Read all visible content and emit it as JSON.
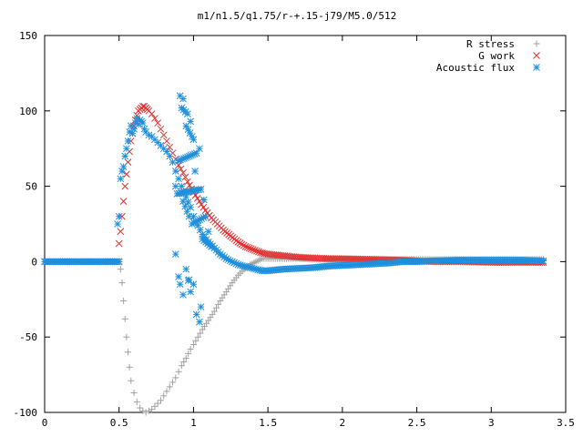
{
  "chart_data": {
    "type": "scatter",
    "title": "m1/n1.5/q1.75/r-+.15-j79/M5.0/512",
    "xlabel": "",
    "ylabel": "",
    "xlim": [
      0,
      3.5
    ],
    "ylim": [
      -100,
      150
    ],
    "xticks": [
      "0",
      "0.5",
      "1",
      "1.5",
      "2",
      "2.5",
      "3",
      "3.5"
    ],
    "yticks": [
      "-100",
      "-50",
      "0",
      "50",
      "100",
      "150"
    ],
    "grid": false,
    "legend_position": "top-right",
    "series": [
      {
        "name": "R stress",
        "marker": "plus",
        "color": "#a0a0a0",
        "points": [
          [
            0.0,
            0
          ],
          [
            0.1,
            0
          ],
          [
            0.2,
            0
          ],
          [
            0.3,
            0
          ],
          [
            0.4,
            0
          ],
          [
            0.5,
            0
          ],
          [
            0.51,
            -5
          ],
          [
            0.52,
            -14
          ],
          [
            0.53,
            -26
          ],
          [
            0.54,
            -38
          ],
          [
            0.55,
            -50
          ],
          [
            0.56,
            -60
          ],
          [
            0.57,
            -70
          ],
          [
            0.58,
            -79
          ],
          [
            0.6,
            -87
          ],
          [
            0.62,
            -93
          ],
          [
            0.64,
            -97
          ],
          [
            0.66,
            -99
          ],
          [
            0.68,
            -100
          ],
          [
            0.7,
            -99
          ],
          [
            0.72,
            -98
          ],
          [
            0.74,
            -96
          ],
          [
            0.76,
            -94
          ],
          [
            0.78,
            -92
          ],
          [
            0.8,
            -89
          ],
          [
            0.82,
            -86
          ],
          [
            0.84,
            -83
          ],
          [
            0.86,
            -80
          ],
          [
            0.88,
            -77
          ],
          [
            0.9,
            -73
          ],
          [
            0.92,
            -69
          ],
          [
            0.95,
            -64
          ],
          [
            0.98,
            -58
          ],
          [
            1.0,
            -55
          ],
          [
            1.03,
            -50
          ],
          [
            1.06,
            -45
          ],
          [
            1.1,
            -39
          ],
          [
            1.14,
            -33
          ],
          [
            1.18,
            -26
          ],
          [
            1.22,
            -20
          ],
          [
            1.26,
            -14
          ],
          [
            1.3,
            -9
          ],
          [
            1.34,
            -5
          ],
          [
            1.38,
            -2
          ],
          [
            1.42,
            0
          ],
          [
            1.46,
            2
          ],
          [
            1.5,
            2
          ],
          [
            1.6,
            2
          ],
          [
            1.7,
            2
          ],
          [
            1.8,
            1.5
          ],
          [
            2.0,
            1.5
          ],
          [
            2.2,
            1.5
          ],
          [
            2.4,
            1.5
          ],
          [
            2.6,
            1.5
          ],
          [
            2.8,
            1.5
          ],
          [
            3.0,
            1.5
          ],
          [
            3.2,
            1.5
          ],
          [
            3.35,
            1.5
          ]
        ]
      },
      {
        "name": "G work",
        "marker": "cross",
        "color": "#e03030",
        "points": [
          [
            0.0,
            0
          ],
          [
            0.1,
            0
          ],
          [
            0.2,
            0
          ],
          [
            0.3,
            0
          ],
          [
            0.4,
            0
          ],
          [
            0.5,
            0
          ],
          [
            0.5,
            12
          ],
          [
            0.51,
            20
          ],
          [
            0.52,
            30
          ],
          [
            0.53,
            40
          ],
          [
            0.54,
            50
          ],
          [
            0.55,
            58
          ],
          [
            0.56,
            66
          ],
          [
            0.57,
            73
          ],
          [
            0.58,
            80
          ],
          [
            0.59,
            85
          ],
          [
            0.6,
            90
          ],
          [
            0.61,
            94
          ],
          [
            0.62,
            97
          ],
          [
            0.63,
            100
          ],
          [
            0.64,
            101
          ],
          [
            0.65,
            102
          ],
          [
            0.66,
            103
          ],
          [
            0.67,
            103
          ],
          [
            0.68,
            102
          ],
          [
            0.69,
            101
          ],
          [
            0.7,
            100
          ],
          [
            0.72,
            98
          ],
          [
            0.74,
            95
          ],
          [
            0.76,
            92
          ],
          [
            0.78,
            88
          ],
          [
            0.8,
            84
          ],
          [
            0.82,
            80
          ],
          [
            0.84,
            76
          ],
          [
            0.86,
            72
          ],
          [
            0.88,
            68
          ],
          [
            0.9,
            64
          ],
          [
            0.93,
            59
          ],
          [
            0.96,
            53
          ],
          [
            1.0,
            46
          ],
          [
            1.04,
            40
          ],
          [
            1.08,
            34
          ],
          [
            1.12,
            29
          ],
          [
            1.16,
            25
          ],
          [
            1.2,
            21
          ],
          [
            1.25,
            17
          ],
          [
            1.3,
            13
          ],
          [
            1.35,
            10
          ],
          [
            1.4,
            8
          ],
          [
            1.45,
            6
          ],
          [
            1.5,
            5
          ],
          [
            1.6,
            4
          ],
          [
            1.7,
            3
          ],
          [
            1.8,
            2.5
          ],
          [
            1.9,
            2
          ],
          [
            2.0,
            2
          ],
          [
            2.2,
            1.5
          ],
          [
            2.4,
            1
          ],
          [
            2.5,
            0.5
          ],
          [
            2.6,
            0
          ],
          [
            2.8,
            0
          ],
          [
            3.0,
            -0.5
          ],
          [
            3.2,
            -0.5
          ],
          [
            3.35,
            -0.5
          ]
        ]
      },
      {
        "name": "Acoustic flux",
        "marker": "star",
        "color": "#1e8fdc",
        "points": [
          [
            0.0,
            0
          ],
          [
            0.1,
            0
          ],
          [
            0.2,
            0
          ],
          [
            0.3,
            0
          ],
          [
            0.4,
            0
          ],
          [
            0.5,
            0
          ],
          [
            0.49,
            25
          ],
          [
            0.5,
            30
          ],
          [
            0.51,
            55
          ],
          [
            0.52,
            60
          ],
          [
            0.53,
            63
          ],
          [
            0.54,
            70
          ],
          [
            0.55,
            75
          ],
          [
            0.56,
            80
          ],
          [
            0.57,
            86
          ],
          [
            0.58,
            90
          ],
          [
            0.59,
            85
          ],
          [
            0.6,
            88
          ],
          [
            0.61,
            92
          ],
          [
            0.62,
            95
          ],
          [
            0.63,
            91
          ],
          [
            0.64,
            94
          ],
          [
            0.65,
            93
          ],
          [
            0.66,
            92
          ],
          [
            0.67,
            88
          ],
          [
            0.68,
            86
          ],
          [
            0.7,
            84
          ],
          [
            0.72,
            83
          ],
          [
            0.74,
            81
          ],
          [
            0.76,
            79
          ],
          [
            0.78,
            77
          ],
          [
            0.8,
            75
          ],
          [
            0.82,
            73
          ],
          [
            0.84,
            70
          ],
          [
            0.86,
            66
          ],
          [
            0.88,
            60
          ],
          [
            0.9,
            55
          ],
          [
            0.92,
            50
          ],
          [
            0.95,
            43
          ],
          [
            0.98,
            36
          ],
          [
            1.0,
            30
          ],
          [
            1.03,
            24
          ],
          [
            1.06,
            18
          ],
          [
            1.1,
            13
          ],
          [
            1.14,
            9
          ],
          [
            1.18,
            5
          ],
          [
            1.22,
            2
          ],
          [
            1.26,
            0
          ],
          [
            1.3,
            -2
          ],
          [
            1.34,
            -3
          ],
          [
            1.38,
            -4
          ],
          [
            1.42,
            -5
          ],
          [
            1.46,
            -6
          ],
          [
            1.5,
            -6
          ],
          [
            1.6,
            -5
          ],
          [
            1.7,
            -4.5
          ],
          [
            1.8,
            -4
          ],
          [
            1.9,
            -3
          ],
          [
            2.0,
            -2.5
          ],
          [
            2.1,
            -2
          ],
          [
            2.2,
            -1.5
          ],
          [
            2.3,
            -1
          ],
          [
            2.4,
            0
          ],
          [
            2.5,
            0
          ],
          [
            2.6,
            0.5
          ],
          [
            2.8,
            1
          ],
          [
            3.0,
            1
          ],
          [
            3.2,
            1
          ],
          [
            3.35,
            0.5
          ],
          [
            0.91,
            110
          ],
          [
            0.93,
            108
          ],
          [
            0.92,
            102
          ],
          [
            0.96,
            98
          ],
          [
            0.98,
            93
          ],
          [
            0.95,
            90
          ],
          [
            0.99,
            83
          ],
          [
            1.0,
            81
          ],
          [
            0.9,
            67
          ],
          [
            1.02,
            72
          ],
          [
            1.04,
            75
          ],
          [
            1.01,
            60
          ],
          [
            0.88,
            50
          ],
          [
            0.89,
            45
          ],
          [
            1.05,
            48
          ],
          [
            1.07,
            41
          ],
          [
            0.93,
            40
          ],
          [
            0.97,
            30
          ],
          [
            0.99,
            25
          ],
          [
            1.08,
            30
          ],
          [
            1.1,
            20
          ],
          [
            1.06,
            15
          ],
          [
            1.12,
            10
          ],
          [
            0.88,
            5
          ],
          [
            0.9,
            -10
          ],
          [
            0.91,
            -15
          ],
          [
            0.93,
            -22
          ],
          [
            0.95,
            -5
          ],
          [
            0.98,
            -20
          ],
          [
            1.0,
            -15
          ],
          [
            1.02,
            -35
          ],
          [
            1.04,
            -40
          ],
          [
            1.05,
            -30
          ],
          [
            0.97,
            -12
          ]
        ]
      }
    ]
  }
}
